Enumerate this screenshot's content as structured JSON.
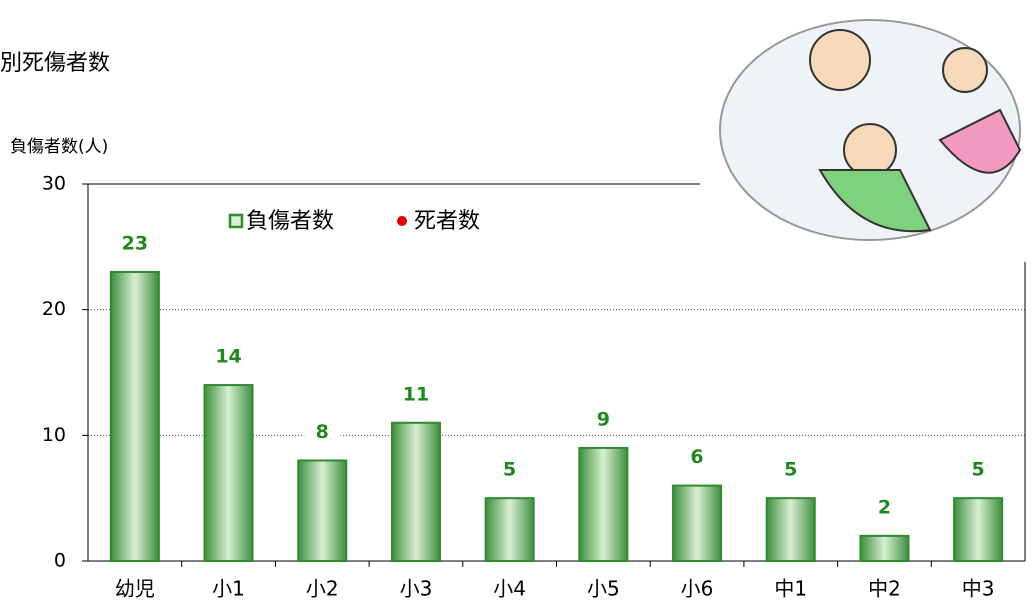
{
  "chart_data": {
    "type": "bar",
    "title": "別死傷者数",
    "y_label": "負傷者数(人)",
    "categories": [
      "幼児",
      "小1",
      "小2",
      "小3",
      "小4",
      "小5",
      "小6",
      "中1",
      "中2",
      "中3"
    ],
    "series": [
      {
        "name": "負傷者数",
        "color": "#2e8b2e",
        "values": [
          23,
          14,
          8,
          11,
          5,
          9,
          6,
          5,
          2,
          5
        ]
      },
      {
        "name": "死者数",
        "color": "#e00000"
      }
    ],
    "ylim": [
      0,
      30
    ],
    "yticks": [
      0,
      10,
      20,
      30
    ],
    "grid": true
  }
}
